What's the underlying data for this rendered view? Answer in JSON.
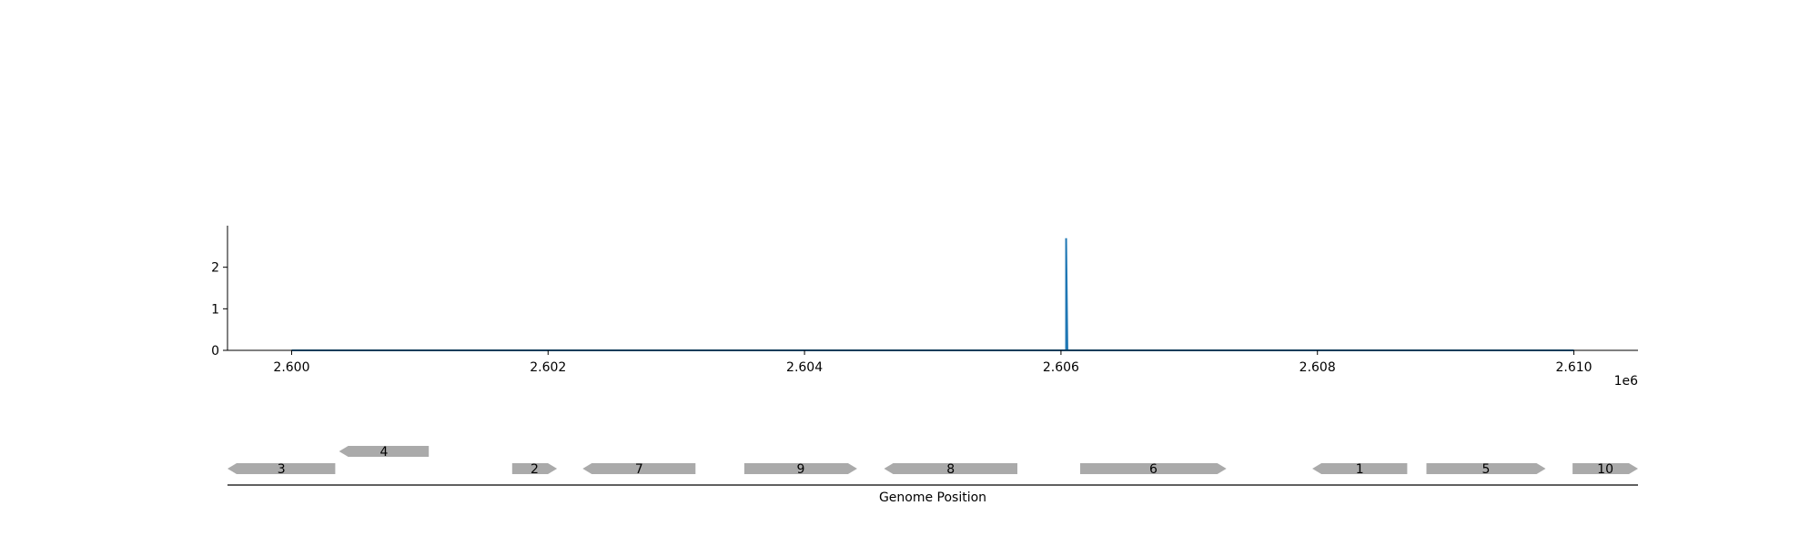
{
  "chart_data": [
    {
      "type": "line",
      "title": "",
      "xlabel": "",
      "ylabel": "",
      "x_offset_label": "1e6",
      "xlim": [
        2599500,
        2610500
      ],
      "ylim": [
        0,
        3
      ],
      "x_ticks": [
        2600000,
        2602000,
        2604000,
        2606000,
        2608000,
        2610000
      ],
      "x_tick_labels": [
        "2.600",
        "2.602",
        "2.604",
        "2.606",
        "2.608",
        "2.610"
      ],
      "y_ticks": [
        0,
        1,
        2
      ],
      "y_tick_labels": [
        "0",
        "1",
        "2"
      ],
      "grid": false,
      "color": "#1f77b4",
      "series": [
        {
          "x": [
            2600000,
            2606030,
            2606040,
            2606040,
            2606050,
            2610000
          ],
          "y": [
            0,
            0,
            0,
            2.7,
            0,
            0
          ]
        }
      ]
    },
    {
      "type": "gene-track",
      "xlabel": "Genome Position",
      "xlim": [
        2599500,
        2610500
      ],
      "color": "#aaaaaa",
      "genes": [
        {
          "label": "3",
          "start": 2599500,
          "end": 2600340,
          "strand": -1,
          "row": 0
        },
        {
          "label": "4",
          "start": 2600370,
          "end": 2601070,
          "strand": -1,
          "row": 1
        },
        {
          "label": "2",
          "start": 2601720,
          "end": 2602070,
          "strand": 1,
          "row": 0
        },
        {
          "label": "7",
          "start": 2602270,
          "end": 2603150,
          "strand": -1,
          "row": 0
        },
        {
          "label": "9",
          "start": 2603530,
          "end": 2604410,
          "strand": 1,
          "row": 0
        },
        {
          "label": "8",
          "start": 2604620,
          "end": 2605660,
          "strand": -1,
          "row": 0
        },
        {
          "label": "6",
          "start": 2606150,
          "end": 2607290,
          "strand": 1,
          "row": 0
        },
        {
          "label": "1",
          "start": 2607960,
          "end": 2608700,
          "strand": -1,
          "row": 0
        },
        {
          "label": "5",
          "start": 2608850,
          "end": 2609780,
          "strand": 1,
          "row": 0
        },
        {
          "label": "10",
          "start": 2609990,
          "end": 2610500,
          "strand": 1,
          "row": 0
        }
      ]
    }
  ]
}
